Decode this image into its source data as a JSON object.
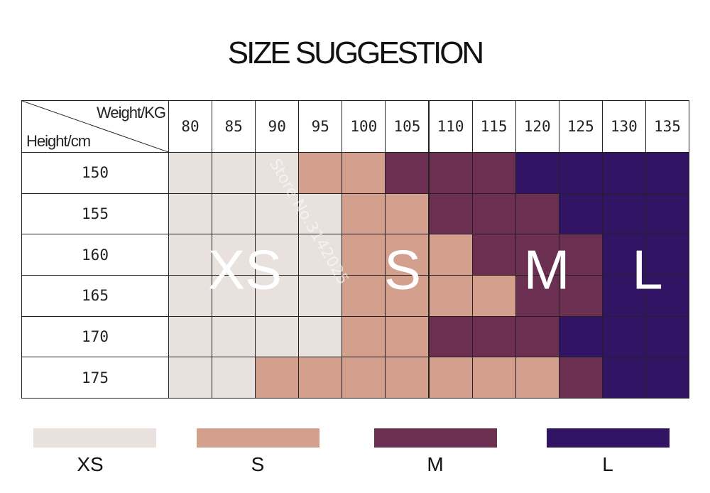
{
  "header": {
    "title": "SIZE SUGGESTION"
  },
  "table": {
    "corner": {
      "top": "Weight/KG",
      "bottom": "Height/cm"
    },
    "weights": [
      "80",
      "85",
      "90",
      "95",
      "100",
      "105",
      "110",
      "115",
      "120",
      "125",
      "130",
      "135"
    ],
    "rows": [
      {
        "height": "150",
        "colors": [
          "#e8e1de",
          "#e8e1de",
          "#e8e1de",
          "#d4a08e",
          "#d4a08e",
          "#6b2f52",
          "#6b2f52",
          "#6b2f52",
          "#321464",
          "#321464",
          "#321464",
          "#321464"
        ]
      },
      {
        "height": "155",
        "colors": [
          "#e8e1de",
          "#e8e1de",
          "#e8e1de",
          "#e8e1de",
          "#d4a08e",
          "#d4a08e",
          "#6b2f52",
          "#6b2f52",
          "#6b2f52",
          "#321464",
          "#321464",
          "#321464"
        ]
      },
      {
        "height": "160",
        "colors": [
          "#e8e1de",
          "#e8e1de",
          "#e8e1de",
          "#e8e1de",
          "#d4a08e",
          "#d4a08e",
          "#d4a08e",
          "#6b2f52",
          "#6b2f52",
          "#6b2f52",
          "#321464",
          "#321464"
        ]
      },
      {
        "height": "165",
        "colors": [
          "#e8e1de",
          "#e8e1de",
          "#e8e1de",
          "#e8e1de",
          "#d4a08e",
          "#d4a08e",
          "#d4a08e",
          "#d4a08e",
          "#6b2f52",
          "#6b2f52",
          "#321464",
          "#321464"
        ]
      },
      {
        "height": "170",
        "colors": [
          "#e8e1de",
          "#e8e1de",
          "#e8e1de",
          "#e8e1de",
          "#d4a08e",
          "#d4a08e",
          "#6b2f52",
          "#6b2f52",
          "#6b2f52",
          "#321464",
          "#321464",
          "#321464"
        ]
      },
      {
        "height": "175",
        "colors": [
          "#e8e1de",
          "#e8e1de",
          "#d4a08e",
          "#d4a08e",
          "#d4a08e",
          "#d4a08e",
          "#d4a08e",
          "#d4a08e",
          "#d4a08e",
          "#6b2f52",
          "#321464",
          "#321464"
        ]
      }
    ],
    "overlay_labels": [
      "XS",
      "S",
      "M",
      "L"
    ],
    "watermark": "Store No.3142025"
  },
  "legend": [
    {
      "label": "XS",
      "color": "#e8e1de"
    },
    {
      "label": "S",
      "color": "#d4a08e"
    },
    {
      "label": "M",
      "color": "#6b2f52"
    },
    {
      "label": "L",
      "color": "#321464"
    }
  ]
}
